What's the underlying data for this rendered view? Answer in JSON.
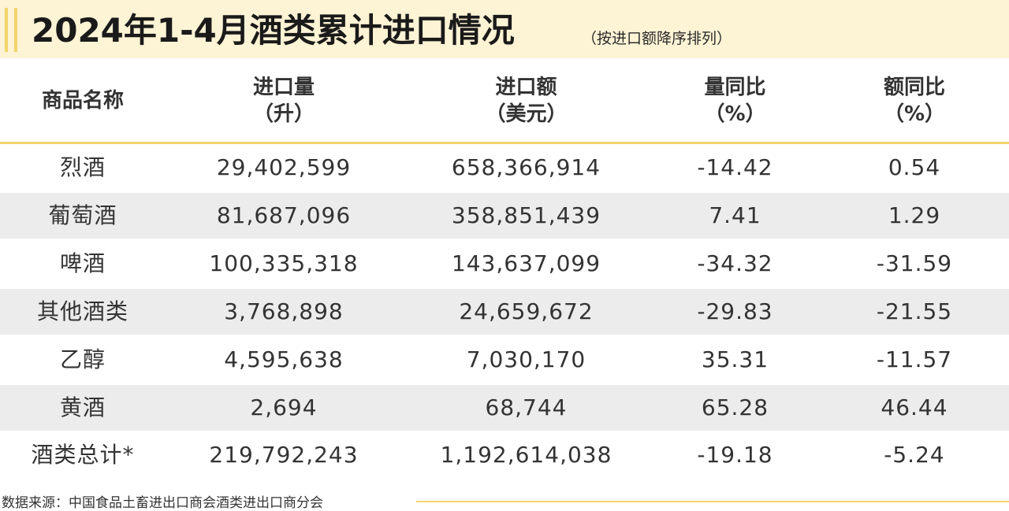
{
  "title": "2024年1-4月酒类累计进口情况",
  "title_note": "（按进口额降序排列）",
  "headers": [
    {
      "line1": "商品名称",
      "line2": ""
    },
    {
      "line1": "进口量",
      "line2": "（升）"
    },
    {
      "line1": "进口额",
      "line2": "（美元）"
    },
    {
      "line1": "量同比",
      "line2": "（%）"
    },
    {
      "line1": "额同比",
      "line2": "（%）"
    }
  ],
  "rows": [
    [
      "烈酒",
      "29,402,599",
      "658,366,914",
      "-14.42",
      "0.54"
    ],
    [
      "葡萄酒",
      "81,687,096",
      "358,851,439",
      "7.41",
      "1.29"
    ],
    [
      "啤酒",
      "100,335,318",
      "143,637,099",
      "-34.32",
      "-31.59"
    ],
    [
      "其他酒类",
      "3,768,898",
      "24,659,672",
      "-29.83",
      "-21.55"
    ],
    [
      "乙醇",
      "4,595,638",
      "7,030,170",
      "35.31",
      "-11.57"
    ],
    [
      "黄酒",
      "2,694",
      "68,744",
      "65.28",
      "46.44"
    ],
    [
      "酒类总计*",
      "219,792,243",
      "1,192,614,038",
      "-19.18",
      "-5.24"
    ]
  ],
  "source": "数据来源：中国食品土畜进出口商会酒类进出口商分会",
  "colors": {
    "accent": "#f2d46b",
    "title_bg": "#fdf3d5",
    "row_shade": "#ececec"
  }
}
